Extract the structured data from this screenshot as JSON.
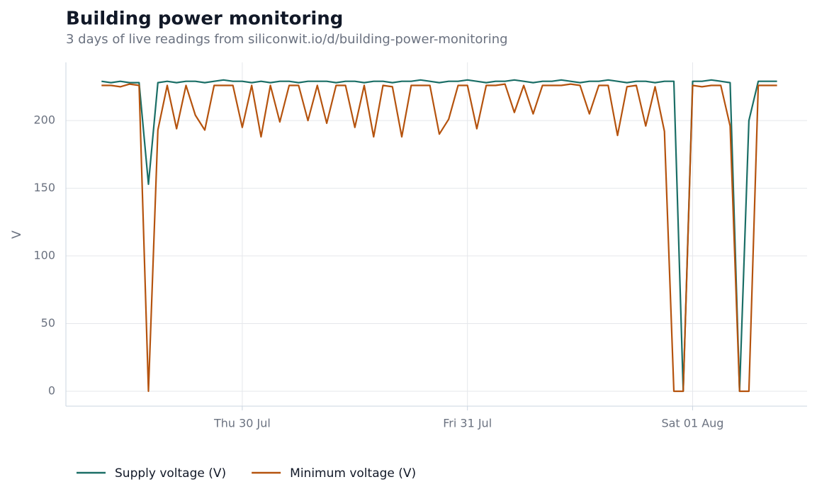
{
  "chart_data": {
    "type": "line",
    "title": "Building power monitoring",
    "subtitle": "3 days of live readings from siliconwit.io/d/building-power-monitoring",
    "y_label": "V",
    "x": [
      9,
      10,
      11,
      12,
      13,
      14,
      15,
      16,
      17,
      18,
      19,
      20,
      21,
      22,
      23,
      24,
      25,
      26,
      27,
      28,
      29,
      30,
      31,
      32,
      33,
      34,
      35,
      36,
      37,
      38,
      39,
      40,
      41,
      42,
      43,
      44,
      45,
      46,
      47,
      48,
      49,
      50,
      51,
      52,
      53,
      54,
      55,
      56,
      57,
      58,
      59,
      60,
      61,
      62,
      63,
      64,
      65,
      66,
      67,
      68,
      69,
      70,
      71,
      72,
      73,
      74,
      75,
      76,
      77,
      78,
      79,
      80,
      81
    ],
    "series": [
      {
        "name": "Supply voltage (V)",
        "color": "#1a6e66",
        "values": [
          229,
          228,
          229,
          228,
          228,
          153,
          228,
          229,
          228,
          229,
          229,
          228,
          229,
          230,
          229,
          229,
          228,
          229,
          228,
          229,
          229,
          228,
          229,
          229,
          229,
          228,
          229,
          229,
          228,
          229,
          229,
          228,
          229,
          229,
          230,
          229,
          228,
          229,
          229,
          230,
          229,
          228,
          229,
          229,
          230,
          229,
          228,
          229,
          229,
          230,
          229,
          228,
          229,
          229,
          230,
          229,
          228,
          229,
          229,
          228,
          229,
          229,
          0,
          229,
          229,
          230,
          229,
          228,
          0,
          200,
          229,
          229,
          229
        ]
      },
      {
        "name": "Minimum voltage (V)",
        "color": "#b5530e",
        "values": [
          226,
          226,
          225,
          227,
          226,
          0,
          193,
          226,
          194,
          226,
          204,
          193,
          226,
          226,
          226,
          195,
          226,
          188,
          226,
          199,
          226,
          226,
          200,
          226,
          198,
          226,
          226,
          195,
          226,
          188,
          226,
          225,
          188,
          226,
          226,
          226,
          190,
          201,
          226,
          226,
          194,
          226,
          226,
          227,
          206,
          226,
          205,
          226,
          226,
          226,
          227,
          226,
          205,
          226,
          226,
          189,
          225,
          226,
          196,
          225,
          192,
          0,
          0,
          226,
          225,
          226,
          226,
          196,
          0,
          0,
          226,
          226,
          226
        ]
      }
    ],
    "xlim": [
      5.2,
      84.2
    ],
    "xticks": [
      {
        "value": 24,
        "label": "Thu 30 Jul"
      },
      {
        "value": 48,
        "label": "Fri 31 Jul"
      },
      {
        "value": 72,
        "label": "Sat 01 Aug"
      }
    ],
    "ylim": [
      -11,
      243
    ],
    "yticks": [
      0,
      50,
      100,
      150,
      200
    ],
    "grid": true
  }
}
